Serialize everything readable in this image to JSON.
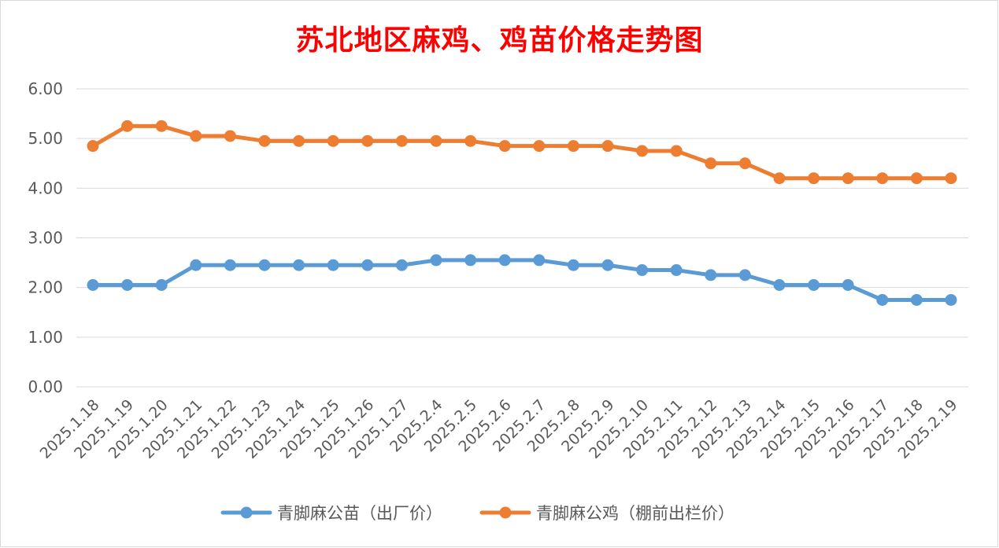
{
  "chart_data": {
    "type": "line",
    "title": "苏北地区麻鸡、鸡苗价格走势图",
    "categories": [
      "2025.1.18",
      "2025.1.19",
      "2025.1.20",
      "2025.1.21",
      "2025.1.22",
      "2025.1.23",
      "2025.1.24",
      "2025.1.25",
      "2025.1.26",
      "2025.1.27",
      "2025.2.4",
      "2025.2.5",
      "2025.2.6",
      "2025.2.7",
      "2025.2.8",
      "2025.2.9",
      "2025.2.10",
      "2025.2.11",
      "2025.2.12",
      "2025.2.13",
      "2025.2.14",
      "2025.2.15",
      "2025.2.16",
      "2025.2.17",
      "2025.2.18",
      "2025.2.19"
    ],
    "series": [
      {
        "name": "青脚麻公苗（出厂价）",
        "color": "#5b9bd5",
        "values": [
          2.05,
          2.05,
          2.05,
          2.45,
          2.45,
          2.45,
          2.45,
          2.45,
          2.45,
          2.45,
          2.55,
          2.55,
          2.55,
          2.55,
          2.45,
          2.45,
          2.35,
          2.35,
          2.25,
          2.25,
          2.05,
          2.05,
          2.05,
          1.75,
          1.75,
          1.75
        ]
      },
      {
        "name": "青脚麻公鸡（棚前出栏价）",
        "color": "#ed7d31",
        "values": [
          4.85,
          5.25,
          5.25,
          5.05,
          5.05,
          4.95,
          4.95,
          4.95,
          4.95,
          4.95,
          4.95,
          4.95,
          4.85,
          4.85,
          4.85,
          4.85,
          4.75,
          4.75,
          4.5,
          4.5,
          4.2,
          4.2,
          4.2,
          4.2,
          4.2,
          4.2
        ]
      }
    ],
    "ylim": [
      0,
      6
    ],
    "yticks": [
      "0.00",
      "1.00",
      "2.00",
      "3.00",
      "4.00",
      "5.00",
      "6.00"
    ],
    "grid": true,
    "legend": "bottom"
  }
}
